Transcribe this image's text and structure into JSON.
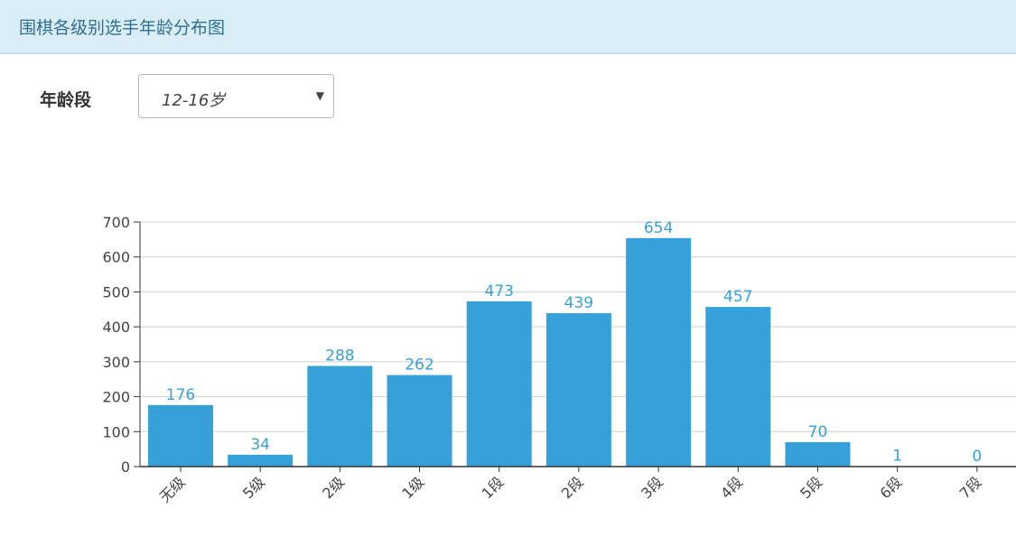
{
  "header": {
    "title": "围棋各级别选手年龄分布图"
  },
  "filter": {
    "label": "年龄段",
    "selected": "12-16岁"
  },
  "colors": {
    "bar": "#36a1d9",
    "label": "#36a1d9",
    "grid": "#cfcfcf",
    "axis": "#333333",
    "header_bg": "#d9edf7"
  },
  "chart_data": {
    "type": "bar",
    "categories": [
      "无级",
      "5级",
      "2级",
      "1级",
      "1段",
      "2段",
      "3段",
      "4段",
      "5段",
      "6段",
      "7段"
    ],
    "values": [
      176,
      34,
      288,
      262,
      473,
      439,
      654,
      457,
      70,
      1,
      0
    ],
    "title": "",
    "xlabel": "",
    "ylabel": "",
    "ylim": [
      0,
      700
    ],
    "yticks": [
      0,
      100,
      200,
      300,
      400,
      500,
      600,
      700
    ],
    "grid": true,
    "legend": "none"
  }
}
